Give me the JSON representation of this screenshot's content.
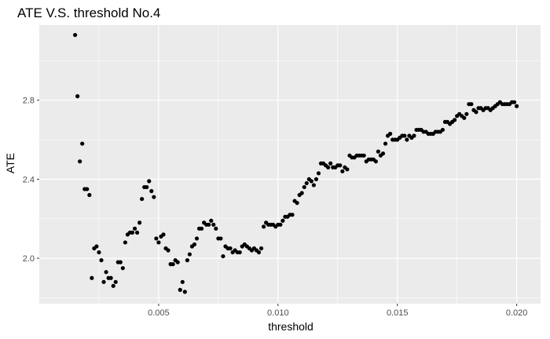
{
  "chart_data": {
    "type": "scatter",
    "title": "ATE V.S. threshold No.4",
    "xlabel": "threshold",
    "ylabel": "ATE",
    "xlim": [
      0.0,
      0.021
    ],
    "ylim": [
      1.77,
      3.18
    ],
    "xticks": [
      0.005,
      0.01,
      0.015,
      0.02
    ],
    "xtick_labels": [
      "0.005",
      "0.010",
      "0.015",
      "0.020"
    ],
    "yticks": [
      2.0,
      2.4,
      2.8
    ],
    "ytick_labels": [
      "2.0",
      "2.4",
      "2.8"
    ],
    "grid": true,
    "panel_color": "#ebebeb",
    "gridline_color": "#ffffff",
    "point_color": "#000000",
    "points": [
      [
        0.0015,
        3.13
      ],
      [
        0.0016,
        2.82
      ],
      [
        0.0017,
        2.49
      ],
      [
        0.0018,
        2.58
      ],
      [
        0.0019,
        2.35
      ],
      [
        0.002,
        2.35
      ],
      [
        0.0021,
        2.32
      ],
      [
        0.0022,
        1.9
      ],
      [
        0.0023,
        2.05
      ],
      [
        0.0024,
        2.06
      ],
      [
        0.0025,
        2.03
      ],
      [
        0.0026,
        1.99
      ],
      [
        0.0027,
        1.88
      ],
      [
        0.0028,
        1.93
      ],
      [
        0.0029,
        1.9
      ],
      [
        0.003,
        1.9
      ],
      [
        0.0031,
        1.86
      ],
      [
        0.0032,
        1.88
      ],
      [
        0.0033,
        1.98
      ],
      [
        0.0034,
        1.98
      ],
      [
        0.0035,
        1.95
      ],
      [
        0.0036,
        2.08
      ],
      [
        0.0037,
        2.12
      ],
      [
        0.0038,
        2.13
      ],
      [
        0.0039,
        2.13
      ],
      [
        0.004,
        2.15
      ],
      [
        0.0041,
        2.13
      ],
      [
        0.0042,
        2.18
      ],
      [
        0.0043,
        2.3
      ],
      [
        0.0044,
        2.36
      ],
      [
        0.0045,
        2.36
      ],
      [
        0.0046,
        2.39
      ],
      [
        0.0047,
        2.34
      ],
      [
        0.0048,
        2.31
      ],
      [
        0.0049,
        2.1
      ],
      [
        0.005,
        2.08
      ],
      [
        0.0051,
        2.11
      ],
      [
        0.0052,
        2.12
      ],
      [
        0.0053,
        2.05
      ],
      [
        0.0054,
        2.04
      ],
      [
        0.0055,
        1.97
      ],
      [
        0.0056,
        1.97
      ],
      [
        0.0057,
        1.99
      ],
      [
        0.0058,
        1.98
      ],
      [
        0.0059,
        1.84
      ],
      [
        0.006,
        1.88
      ],
      [
        0.0061,
        1.83
      ],
      [
        0.0062,
        1.99
      ],
      [
        0.0063,
        2.02
      ],
      [
        0.0064,
        2.06
      ],
      [
        0.0065,
        2.07
      ],
      [
        0.0066,
        2.1
      ],
      [
        0.0067,
        2.15
      ],
      [
        0.0068,
        2.15
      ],
      [
        0.0069,
        2.18
      ],
      [
        0.007,
        2.17
      ],
      [
        0.0071,
        2.17
      ],
      [
        0.0072,
        2.19
      ],
      [
        0.0073,
        2.17
      ],
      [
        0.0074,
        2.15
      ],
      [
        0.0075,
        2.1
      ],
      [
        0.0076,
        2.1
      ],
      [
        0.0077,
        2.01
      ],
      [
        0.0078,
        2.06
      ],
      [
        0.0079,
        2.05
      ],
      [
        0.008,
        2.05
      ],
      [
        0.0081,
        2.03
      ],
      [
        0.0082,
        2.04
      ],
      [
        0.0083,
        2.03
      ],
      [
        0.0084,
        2.03
      ],
      [
        0.0085,
        2.06
      ],
      [
        0.0086,
        2.07
      ],
      [
        0.0087,
        2.06
      ],
      [
        0.0088,
        2.05
      ],
      [
        0.0089,
        2.04
      ],
      [
        0.009,
        2.05
      ],
      [
        0.0091,
        2.04
      ],
      [
        0.0092,
        2.03
      ],
      [
        0.0093,
        2.05
      ],
      [
        0.0094,
        2.16
      ],
      [
        0.0095,
        2.18
      ],
      [
        0.0096,
        2.17
      ],
      [
        0.0097,
        2.17
      ],
      [
        0.0098,
        2.17
      ],
      [
        0.0099,
        2.16
      ],
      [
        0.01,
        2.17
      ],
      [
        0.0101,
        2.17
      ],
      [
        0.0102,
        2.19
      ],
      [
        0.0103,
        2.21
      ],
      [
        0.0104,
        2.21
      ],
      [
        0.0105,
        2.22
      ],
      [
        0.0106,
        2.22
      ],
      [
        0.0107,
        2.29
      ],
      [
        0.0108,
        2.28
      ],
      [
        0.0109,
        2.32
      ],
      [
        0.011,
        2.33
      ],
      [
        0.0111,
        2.36
      ],
      [
        0.0112,
        2.38
      ],
      [
        0.0113,
        2.4
      ],
      [
        0.0114,
        2.39
      ],
      [
        0.0115,
        2.37
      ],
      [
        0.0116,
        2.4
      ],
      [
        0.0117,
        2.43
      ],
      [
        0.0118,
        2.48
      ],
      [
        0.0119,
        2.48
      ],
      [
        0.012,
        2.47
      ],
      [
        0.0121,
        2.46
      ],
      [
        0.0122,
        2.48
      ],
      [
        0.0123,
        2.46
      ],
      [
        0.0124,
        2.46
      ],
      [
        0.0125,
        2.47
      ],
      [
        0.0126,
        2.47
      ],
      [
        0.0127,
        2.44
      ],
      [
        0.0128,
        2.46
      ],
      [
        0.0129,
        2.45
      ],
      [
        0.013,
        2.52
      ],
      [
        0.0131,
        2.51
      ],
      [
        0.0132,
        2.51
      ],
      [
        0.0133,
        2.52
      ],
      [
        0.0134,
        2.52
      ],
      [
        0.0135,
        2.52
      ],
      [
        0.0136,
        2.52
      ],
      [
        0.0137,
        2.49
      ],
      [
        0.0138,
        2.5
      ],
      [
        0.0139,
        2.5
      ],
      [
        0.014,
        2.5
      ],
      [
        0.0141,
        2.49
      ],
      [
        0.0142,
        2.54
      ],
      [
        0.0143,
        2.52
      ],
      [
        0.0144,
        2.53
      ],
      [
        0.0145,
        2.58
      ],
      [
        0.0146,
        2.62
      ],
      [
        0.0147,
        2.63
      ],
      [
        0.0148,
        2.6
      ],
      [
        0.0149,
        2.6
      ],
      [
        0.015,
        2.6
      ],
      [
        0.0151,
        2.61
      ],
      [
        0.0152,
        2.62
      ],
      [
        0.0153,
        2.62
      ],
      [
        0.0154,
        2.6
      ],
      [
        0.0155,
        2.62
      ],
      [
        0.0156,
        2.61
      ],
      [
        0.0157,
        2.62
      ],
      [
        0.0158,
        2.65
      ],
      [
        0.0159,
        2.65
      ],
      [
        0.016,
        2.65
      ],
      [
        0.0161,
        2.64
      ],
      [
        0.0162,
        2.64
      ],
      [
        0.0163,
        2.63
      ],
      [
        0.0164,
        2.63
      ],
      [
        0.0165,
        2.63
      ],
      [
        0.0166,
        2.64
      ],
      [
        0.0167,
        2.64
      ],
      [
        0.0168,
        2.64
      ],
      [
        0.0169,
        2.65
      ],
      [
        0.017,
        2.69
      ],
      [
        0.0171,
        2.69
      ],
      [
        0.0172,
        2.68
      ],
      [
        0.0173,
        2.69
      ],
      [
        0.0174,
        2.7
      ],
      [
        0.0175,
        2.72
      ],
      [
        0.0176,
        2.73
      ],
      [
        0.0177,
        2.72
      ],
      [
        0.0178,
        2.71
      ],
      [
        0.0179,
        2.73
      ],
      [
        0.018,
        2.78
      ],
      [
        0.0181,
        2.78
      ],
      [
        0.0182,
        2.75
      ],
      [
        0.0183,
        2.74
      ],
      [
        0.0184,
        2.76
      ],
      [
        0.0185,
        2.76
      ],
      [
        0.0186,
        2.75
      ],
      [
        0.0187,
        2.76
      ],
      [
        0.0188,
        2.76
      ],
      [
        0.0189,
        2.75
      ],
      [
        0.019,
        2.76
      ],
      [
        0.0191,
        2.77
      ],
      [
        0.0192,
        2.78
      ],
      [
        0.0193,
        2.79
      ],
      [
        0.0194,
        2.78
      ],
      [
        0.0195,
        2.78
      ],
      [
        0.0196,
        2.78
      ],
      [
        0.0197,
        2.78
      ],
      [
        0.0198,
        2.79
      ],
      [
        0.0199,
        2.79
      ],
      [
        0.02,
        2.77
      ]
    ]
  }
}
